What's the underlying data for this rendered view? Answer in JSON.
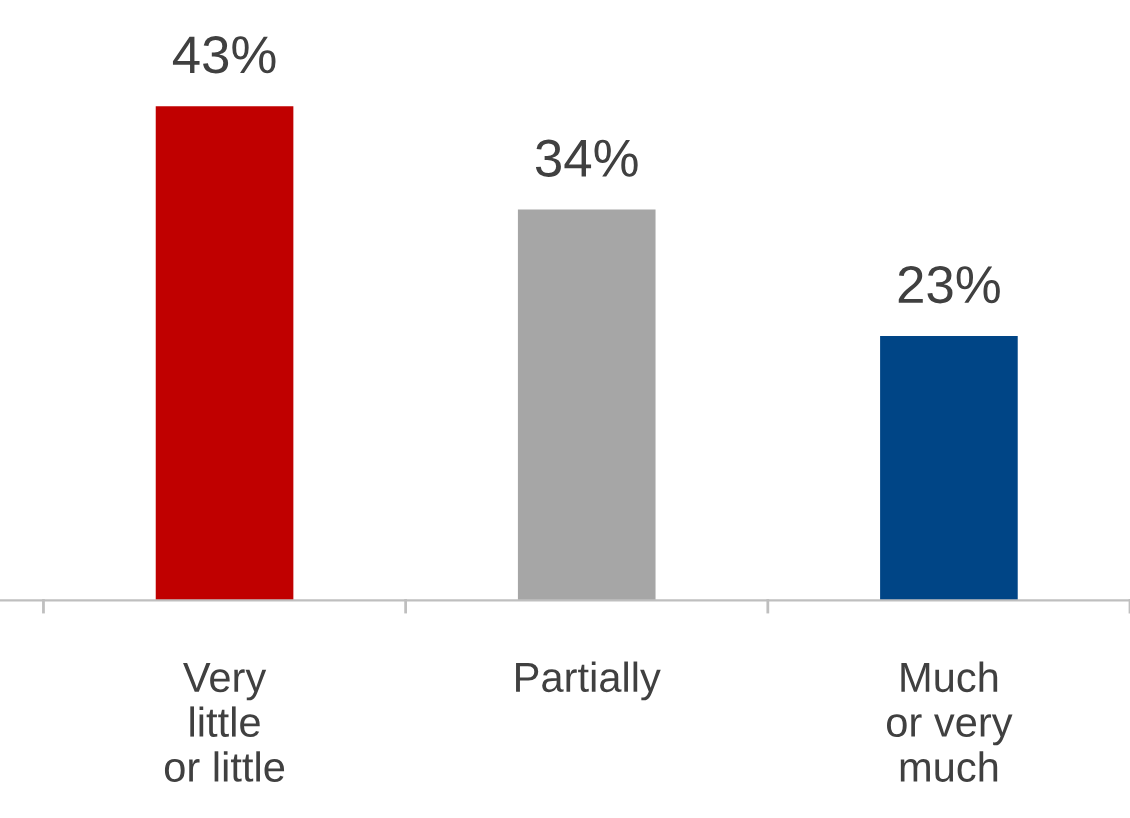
{
  "chart_data": {
    "type": "bar",
    "categories": [
      "Very\nlittle\nor little",
      "Partially",
      "Much\nor very\nmuch"
    ],
    "values": [
      43,
      34,
      23
    ],
    "colors": [
      "#c00000",
      "#a6a6a6",
      "#004586"
    ],
    "value_labels": [
      "43%",
      "34%",
      "23%"
    ],
    "grid": false,
    "legend": false
  }
}
